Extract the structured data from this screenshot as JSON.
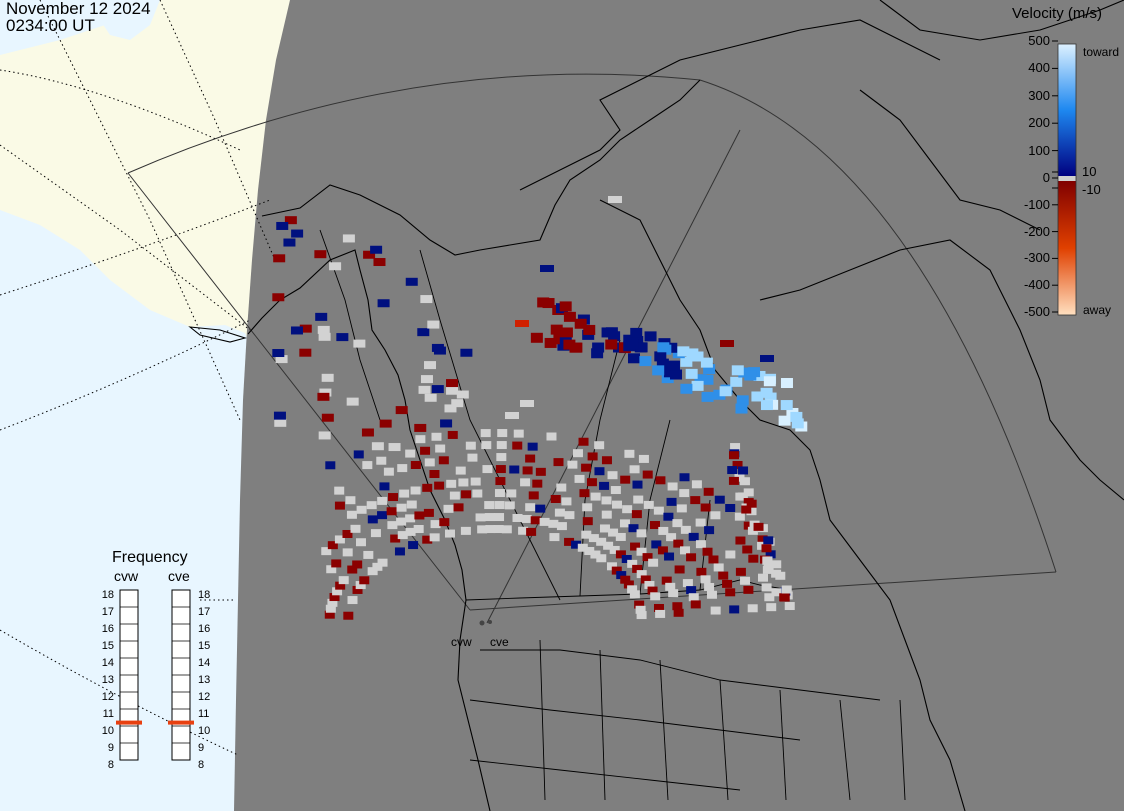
{
  "header": {
    "date": "November 12 2024",
    "time": "0234:00 UT"
  },
  "velocity_legend": {
    "title": "Velocity (m/s)",
    "ticks": [
      {
        "value": 500,
        "label": "500"
      },
      {
        "value": 400,
        "label": "400"
      },
      {
        "value": 300,
        "label": "300"
      },
      {
        "value": 200,
        "label": "200"
      },
      {
        "value": 100,
        "label": "100"
      },
      {
        "value": 10,
        "label": "10"
      },
      {
        "value": 0,
        "label": "0"
      },
      {
        "value": -10,
        "label": "-10"
      },
      {
        "value": -100,
        "label": "-100"
      },
      {
        "value": -200,
        "label": "-200"
      },
      {
        "value": -300,
        "label": "-300"
      },
      {
        "value": -400,
        "label": "-400"
      },
      {
        "value": -500,
        "label": "-500"
      }
    ],
    "toward_label": "toward",
    "away_label": "away",
    "colors": {
      "toward_max": "#ddf1ff",
      "toward_mid": "#1e88f0",
      "toward_min": "#000080",
      "zero": "#d0d0d0",
      "away_min": "#800000",
      "away_mid": "#e04000",
      "away_max": "#ffe0c0"
    }
  },
  "frequency_legend": {
    "title": "Frequency",
    "ticks": [
      "18",
      "17",
      "16",
      "15",
      "14",
      "13",
      "12",
      "11",
      "10",
      "9",
      "8"
    ],
    "radars": [
      {
        "name": "cvw",
        "frequency_mhz": 10.7
      },
      {
        "name": "cve",
        "frequency_mhz": 10.7
      }
    ],
    "marker_color": "#e84010"
  },
  "sites": [
    {
      "label": "cvw"
    },
    {
      "label": "cve"
    }
  ],
  "map_colors": {
    "night_side": "#7f7f7f",
    "sunlit_ocean": "#e8f6ff",
    "sunlit_land": "#fafae6",
    "coastline": "#000000",
    "ground_scatter": "#d2d2d2"
  }
}
